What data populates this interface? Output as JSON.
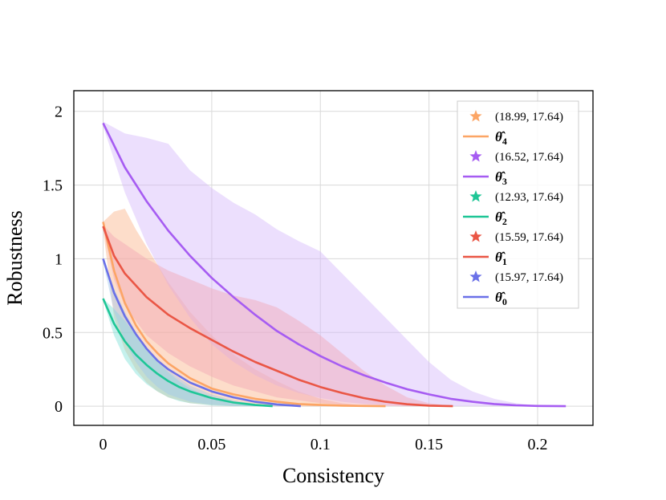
{
  "chart_data": {
    "type": "line",
    "title": "",
    "xlabel": "Consistency",
    "ylabel": "Robustness",
    "xlim": [
      -0.0135,
      0.2255
    ],
    "ylim": [
      -0.13,
      2.14
    ],
    "xticks": [
      0,
      0.05,
      0.1,
      0.15,
      0.2
    ],
    "xtick_labels": [
      "0",
      "0.05",
      "0.1",
      "0.15",
      "0.2"
    ],
    "yticks": [
      0,
      0.5,
      1,
      1.5,
      2
    ],
    "ytick_labels": [
      "0",
      "0.5",
      "1",
      "1.5",
      "2"
    ],
    "grid": true,
    "legend_position": "top-right",
    "series": [
      {
        "id": "theta4",
        "name": "θ̂4",
        "theta_sub": "4",
        "color": "#fca565",
        "band_color": "#fbb48a",
        "marker_label": "(18.99, 17.64)",
        "x": [
          0,
          0.005,
          0.01,
          0.015,
          0.02,
          0.025,
          0.03,
          0.04,
          0.05,
          0.06,
          0.07,
          0.08,
          0.09,
          0.1,
          0.11,
          0.12,
          0.13
        ],
        "y": [
          1.25,
          0.92,
          0.7,
          0.55,
          0.44,
          0.36,
          0.29,
          0.19,
          0.12,
          0.08,
          0.05,
          0.03,
          0.015,
          0.008,
          0.004,
          0.002,
          0.0
        ],
        "band_upper": [
          1.25,
          1.32,
          1.34,
          1.2,
          1.08,
          0.96,
          0.84,
          0.64,
          0.48,
          0.35,
          0.25,
          0.17,
          0.1,
          0.05,
          0.02,
          0.005,
          0.0
        ],
        "band_lower": [
          1.2,
          0.6,
          0.38,
          0.25,
          0.16,
          0.1,
          0.06,
          0.02,
          0.008,
          0.003,
          0.001,
          0.0,
          0.0,
          0.0,
          0.0,
          0.0,
          0.0
        ]
      },
      {
        "id": "theta3",
        "name": "θ̂3",
        "theta_sub": "3",
        "color": "#a65cf2",
        "band_color": "#d4b8fb",
        "marker_label": "(16.52, 17.64)",
        "x": [
          0,
          0.01,
          0.02,
          0.03,
          0.04,
          0.05,
          0.06,
          0.07,
          0.08,
          0.09,
          0.1,
          0.11,
          0.12,
          0.13,
          0.14,
          0.15,
          0.16,
          0.17,
          0.18,
          0.19,
          0.2,
          0.213
        ],
        "y": [
          1.92,
          1.62,
          1.39,
          1.19,
          1.02,
          0.87,
          0.74,
          0.62,
          0.51,
          0.42,
          0.34,
          0.27,
          0.21,
          0.16,
          0.115,
          0.08,
          0.05,
          0.03,
          0.015,
          0.006,
          0.002,
          0.0
        ],
        "band_upper": [
          1.93,
          1.85,
          1.82,
          1.78,
          1.6,
          1.48,
          1.38,
          1.3,
          1.2,
          1.12,
          1.05,
          0.9,
          0.75,
          0.6,
          0.45,
          0.3,
          0.18,
          0.1,
          0.05,
          0.02,
          0.005,
          0.0
        ],
        "band_lower": [
          1.9,
          1.45,
          1.1,
          0.82,
          0.6,
          0.42,
          0.3,
          0.21,
          0.14,
          0.09,
          0.055,
          0.03,
          0.015,
          0.007,
          0.003,
          0.001,
          0.0,
          0.0,
          0.0,
          0.0,
          0.0,
          0.0
        ]
      },
      {
        "id": "theta2",
        "name": "θ̂2",
        "theta_sub": "2",
        "color": "#1ec696",
        "band_color": "#7fe0d6",
        "marker_label": "(12.93, 17.64)",
        "x": [
          0,
          0.005,
          0.01,
          0.015,
          0.02,
          0.025,
          0.03,
          0.035,
          0.04,
          0.05,
          0.06,
          0.07,
          0.078
        ],
        "y": [
          0.73,
          0.56,
          0.44,
          0.35,
          0.28,
          0.22,
          0.17,
          0.13,
          0.1,
          0.055,
          0.025,
          0.008,
          0.0
        ],
        "band_upper": [
          0.73,
          0.66,
          0.58,
          0.48,
          0.38,
          0.3,
          0.23,
          0.17,
          0.12,
          0.06,
          0.025,
          0.008,
          0.0
        ],
        "band_lower": [
          0.72,
          0.48,
          0.32,
          0.22,
          0.15,
          0.1,
          0.06,
          0.035,
          0.02,
          0.005,
          0.0,
          0.0,
          0.0
        ]
      },
      {
        "id": "theta1",
        "name": "θ̂1",
        "theta_sub": "1",
        "color": "#ea5645",
        "band_color": "#f2a6b4",
        "marker_label": "(15.59, 17.64)",
        "x": [
          0,
          0.005,
          0.01,
          0.02,
          0.03,
          0.04,
          0.05,
          0.06,
          0.07,
          0.08,
          0.09,
          0.1,
          0.11,
          0.12,
          0.13,
          0.14,
          0.15,
          0.161
        ],
        "y": [
          1.22,
          1.02,
          0.9,
          0.74,
          0.62,
          0.53,
          0.45,
          0.37,
          0.3,
          0.24,
          0.18,
          0.13,
          0.09,
          0.055,
          0.03,
          0.013,
          0.004,
          0.0
        ],
        "band_upper": [
          1.23,
          1.15,
          1.1,
          1.0,
          0.92,
          0.86,
          0.8,
          0.75,
          0.72,
          0.67,
          0.58,
          0.48,
          0.36,
          0.24,
          0.14,
          0.06,
          0.02,
          0.0
        ],
        "band_lower": [
          1.2,
          0.86,
          0.68,
          0.48,
          0.36,
          0.27,
          0.2,
          0.14,
          0.1,
          0.06,
          0.04,
          0.02,
          0.01,
          0.004,
          0.001,
          0.0,
          0.0,
          0.0
        ]
      },
      {
        "id": "theta0",
        "name": "θ̂0",
        "theta_sub": "0",
        "color": "#6a70e8",
        "band_color": "#9fc7ee",
        "marker_label": "(15.97, 17.64)",
        "x": [
          0,
          0.005,
          0.01,
          0.015,
          0.02,
          0.025,
          0.03,
          0.04,
          0.05,
          0.06,
          0.07,
          0.08,
          0.091
        ],
        "y": [
          1.0,
          0.77,
          0.61,
          0.49,
          0.39,
          0.31,
          0.25,
          0.16,
          0.1,
          0.06,
          0.03,
          0.012,
          0.0
        ],
        "band_upper": [
          1.0,
          0.8,
          0.64,
          0.5,
          0.4,
          0.31,
          0.24,
          0.14,
          0.08,
          0.04,
          0.015,
          0.005,
          0.0
        ],
        "band_lower": [
          0.98,
          0.64,
          0.44,
          0.3,
          0.2,
          0.13,
          0.08,
          0.03,
          0.01,
          0.003,
          0.0,
          0.0,
          0.0
        ]
      }
    ]
  }
}
